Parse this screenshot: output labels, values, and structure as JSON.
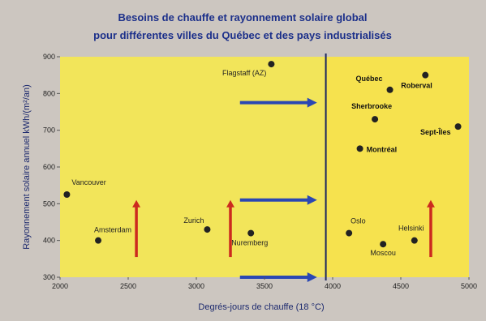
{
  "chart_data": {
    "type": "scatter",
    "title": "Besoins de chauffe et rayonnement solaire global",
    "subtitle": "pour différentes villes du Québec et des pays industrialisés",
    "xlabel": "Degrés-jours de chauffe (18 °C)",
    "ylabel": "Rayonnement solaire annuel kWh/(m²/an)",
    "xlim": [
      2000,
      5000
    ],
    "ylim": [
      300,
      900
    ],
    "xticks": [
      "2000",
      "2500",
      "3000",
      "3500",
      "4000",
      "4500",
      "5000"
    ],
    "yticks": [
      "300",
      "400",
      "500",
      "600",
      "700",
      "800",
      "900"
    ],
    "divider_x": 3950,
    "grid": false,
    "points": [
      {
        "label": "Flagstaff (AZ)",
        "x": 3550,
        "y": 880,
        "bold": false
      },
      {
        "label": "Vancouver",
        "x": 2050,
        "y": 525,
        "bold": false
      },
      {
        "label": "Amsterdam",
        "x": 2280,
        "y": 400,
        "bold": false
      },
      {
        "label": "Zurich",
        "x": 3080,
        "y": 430,
        "bold": false
      },
      {
        "label": "Nuremberg",
        "x": 3400,
        "y": 420,
        "bold": false
      },
      {
        "label": "Québec",
        "x": 4420,
        "y": 810,
        "bold": true
      },
      {
        "label": "Roberval",
        "x": 4680,
        "y": 850,
        "bold": true
      },
      {
        "label": "Sherbrooke",
        "x": 4310,
        "y": 730,
        "bold": true
      },
      {
        "label": "Sept-Îles",
        "x": 4920,
        "y": 710,
        "bold": true
      },
      {
        "label": "Montréal",
        "x": 4200,
        "y": 650,
        "bold": true
      },
      {
        "label": "Oslo",
        "x": 4120,
        "y": 420,
        "bold": false
      },
      {
        "label": "Helsinki",
        "x": 4600,
        "y": 400,
        "bold": false
      },
      {
        "label": "Moscou",
        "x": 4370,
        "y": 390,
        "bold": false
      }
    ],
    "arrows_right_y": [
      775,
      510,
      300
    ],
    "arrows_up_x": [
      2560,
      3250,
      4720
    ],
    "colors": {
      "plot_left": "#f2e55a",
      "plot_right": "#f6e24e",
      "arrow_blue": "#2a47b3",
      "arrow_red": "#cc2a1e",
      "title": "#1b2f8a",
      "divider": "#1a2660"
    }
  }
}
